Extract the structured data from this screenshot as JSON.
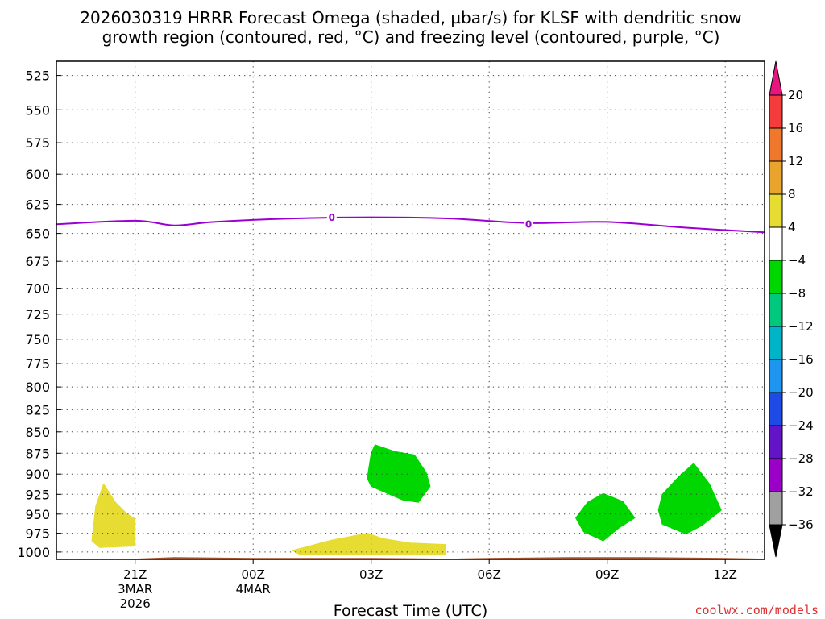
{
  "title": {
    "line1": "2026030319 HRRR Forecast Omega (shaded, µbar/s) for KLSF with dendritic snow",
    "line2": "growth region (contoured, red, °C) and freezing level (contoured, purple, °C)"
  },
  "credit": "coolwx.com/models",
  "credit_color": "#e03030",
  "chart_data": {
    "type": "contour-time-height",
    "title": "2026030319 HRRR Forecast Omega (shaded, µbar/s) for KLSF with dendritic snow growth region (contoured, red, °C) and freezing level (contoured, purple, °C)",
    "xlabel": "Forecast Time (UTC)",
    "ylabel": "",
    "x_unit": "hours since 2026-03-03 19Z",
    "xlim": [
      0,
      18
    ],
    "y_scale": "log-pressure (inverted)",
    "ylim": [
      1010,
      515
    ],
    "y_ticks": [
      525,
      550,
      575,
      600,
      625,
      650,
      675,
      700,
      725,
      750,
      775,
      800,
      825,
      850,
      875,
      900,
      925,
      950,
      975,
      1000
    ],
    "x_ticks": [
      {
        "x": 2,
        "label": "21Z",
        "sub1": "3MAR",
        "sub2": "2026"
      },
      {
        "x": 5,
        "label": "00Z",
        "sub1": "4MAR",
        "sub2": ""
      },
      {
        "x": 8,
        "label": "03Z",
        "sub1": "",
        "sub2": ""
      },
      {
        "x": 11,
        "label": "06Z",
        "sub1": "",
        "sub2": ""
      },
      {
        "x": 14,
        "label": "09Z",
        "sub1": "",
        "sub2": ""
      },
      {
        "x": 17,
        "label": "12Z",
        "sub1": "",
        "sub2": ""
      }
    ],
    "grid": true,
    "freezing_level": {
      "color": "#9b00d3",
      "label": "0",
      "points": [
        [
          0,
          642
        ],
        [
          2,
          639
        ],
        [
          3,
          643
        ],
        [
          4,
          640
        ],
        [
          6,
          637
        ],
        [
          8,
          636
        ],
        [
          10,
          637
        ],
        [
          12,
          641
        ],
        [
          14,
          640
        ],
        [
          16,
          645
        ],
        [
          18,
          649
        ]
      ],
      "label_positions": [
        [
          7,
          636
        ],
        [
          12,
          642
        ]
      ]
    },
    "omega_regions": [
      {
        "level": "4 to 8",
        "color": "#e6dc32",
        "points": [
          [
            0.9,
            985
          ],
          [
            1.0,
            940
          ],
          [
            1.2,
            912
          ],
          [
            1.5,
            935
          ],
          [
            1.8,
            950
          ],
          [
            2.0,
            956
          ],
          [
            2.0,
            992
          ],
          [
            1.1,
            994
          ]
        ]
      },
      {
        "level": "4 to 8",
        "color": "#e6dc32",
        "points": [
          [
            6.0,
            998
          ],
          [
            7.0,
            984
          ],
          [
            7.9,
            975
          ],
          [
            8.3,
            982
          ],
          [
            9.0,
            988
          ],
          [
            9.9,
            990
          ],
          [
            9.9,
            1004
          ],
          [
            8,
            1004
          ],
          [
            6.2,
            1004
          ]
        ]
      },
      {
        "level": "-4 to -8",
        "color": "#00d700",
        "points": [
          [
            7.9,
            905
          ],
          [
            8.0,
            875
          ],
          [
            8.1,
            865
          ],
          [
            8.6,
            873
          ],
          [
            9.1,
            877
          ],
          [
            9.4,
            898
          ],
          [
            9.5,
            915
          ],
          [
            9.2,
            935
          ],
          [
            8.8,
            932
          ],
          [
            8.0,
            915
          ]
        ]
      },
      {
        "level": "-4 to -8",
        "color": "#00d700",
        "points": [
          [
            13.2,
            955
          ],
          [
            13.5,
            935
          ],
          [
            13.9,
            924
          ],
          [
            14.4,
            934
          ],
          [
            14.7,
            955
          ],
          [
            14.3,
            968
          ],
          [
            13.9,
            985
          ],
          [
            13.4,
            973
          ]
        ]
      },
      {
        "level": "-4 to -8",
        "color": "#00d700",
        "points": [
          [
            15.3,
            945
          ],
          [
            15.4,
            925
          ],
          [
            15.8,
            904
          ],
          [
            16.2,
            887
          ],
          [
            16.6,
            912
          ],
          [
            16.9,
            945
          ],
          [
            16.4,
            965
          ],
          [
            16.0,
            976
          ],
          [
            15.4,
            963
          ]
        ]
      }
    ],
    "surface": {
      "color": "#a0522d",
      "points": [
        [
          0,
          1009
        ],
        [
          2,
          1009
        ],
        [
          3,
          1007
        ],
        [
          5,
          1008
        ],
        [
          8,
          1008
        ],
        [
          10,
          1009
        ],
        [
          11,
          1008
        ],
        [
          13,
          1007
        ],
        [
          15,
          1007
        ],
        [
          17,
          1008
        ],
        [
          18,
          1009
        ]
      ]
    },
    "colorbar": {
      "labels": [
        "20",
        "16",
        "12",
        "8",
        "4",
        "−4",
        "−8",
        "−12",
        "−16",
        "−20",
        "−24",
        "−28",
        "−32",
        "−36"
      ],
      "colors": [
        "#e8157e",
        "#f53c3c",
        "#f0782d",
        "#e8a42d",
        "#e6dc32",
        "#ffffff",
        "#00d700",
        "#00c87d",
        "#00b4c8",
        "#1e96f0",
        "#1e4be6",
        "#6414c8",
        "#9b00c8",
        "#a0a0a0",
        "#000000"
      ]
    }
  }
}
